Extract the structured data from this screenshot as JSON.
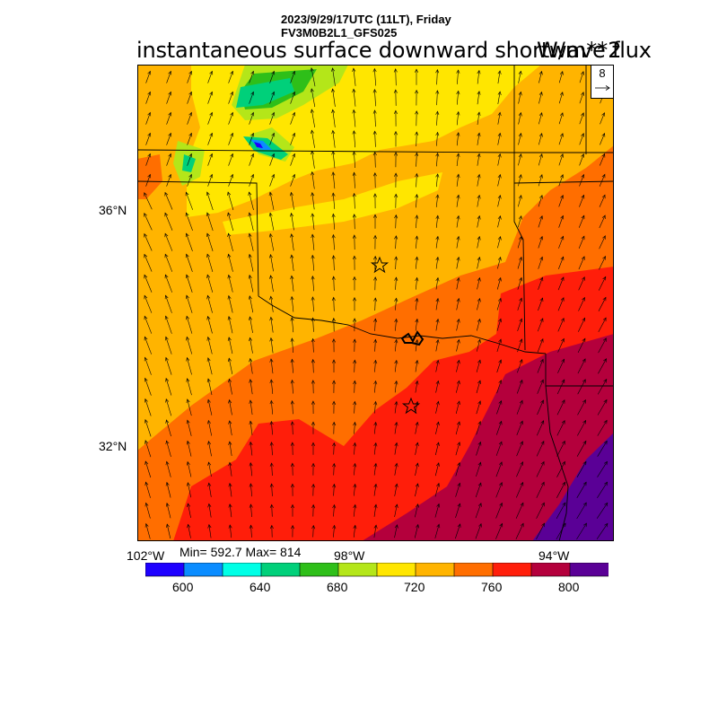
{
  "header": {
    "datetime": "2023/9/29/17UTC (11LT), Friday",
    "model": "FV3M0B2L1_GFS025",
    "title": "instantaneous surface downward shortwave flux",
    "units": "W/m**2"
  },
  "axes": {
    "lat_labels": [
      "36°N",
      "32°N"
    ],
    "lon_labels": [
      "102°W",
      "98°W",
      "94°W"
    ]
  },
  "stats": {
    "text": "Min= 592.7 Max= 814",
    "min": 592.7,
    "max": 814
  },
  "vector_key": {
    "value": "8"
  },
  "colorbar": {
    "colors": [
      "#1e00ff",
      "#0a8cff",
      "#00ffe6",
      "#00d07a",
      "#2ebf19",
      "#b4e619",
      "#ffe600",
      "#ffb400",
      "#ff6e00",
      "#ff1e0a",
      "#b4003c",
      "#5a0096"
    ],
    "labels": [
      "600",
      "640",
      "680",
      "720",
      "760",
      "800"
    ]
  },
  "markers": {
    "stations": [
      "star",
      "star"
    ]
  }
}
